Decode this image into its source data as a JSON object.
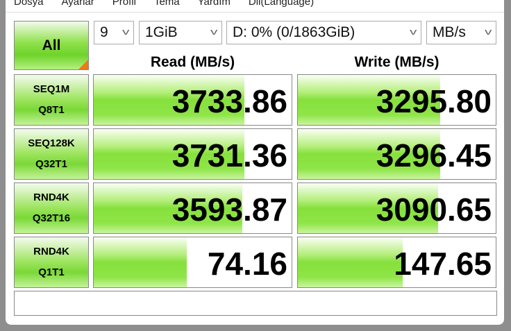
{
  "menu": [
    "Dosya",
    "Ayarlar",
    "Profil",
    "Tema",
    "Yardım",
    "Dil(Language)"
  ],
  "controls": {
    "all_label": "All",
    "count": "9",
    "size": "1GiB",
    "drive": "D: 0% (0/1863GiB)",
    "unit": "MB/s"
  },
  "headers": {
    "read": "Read (MB/s)",
    "write": "Write (MB/s)"
  },
  "rows": [
    {
      "l1": "SEQ1M",
      "l2": "Q8T1",
      "read": "3733.86",
      "write": "3295.80",
      "read_fill": 0.76,
      "write_fill": 0.72
    },
    {
      "l1": "SEQ128K",
      "l2": "Q32T1",
      "read": "3731.36",
      "write": "3296.45",
      "read_fill": 0.76,
      "write_fill": 0.72
    },
    {
      "l1": "RND4K",
      "l2": "Q32T16",
      "read": "3593.87",
      "write": "3090.65",
      "read_fill": 0.75,
      "write_fill": 0.71
    },
    {
      "l1": "RND4K",
      "l2": "Q1T1",
      "read": "74.16",
      "write": "147.65",
      "read_fill": 0.47,
      "write_fill": 0.53
    }
  ],
  "status": ""
}
